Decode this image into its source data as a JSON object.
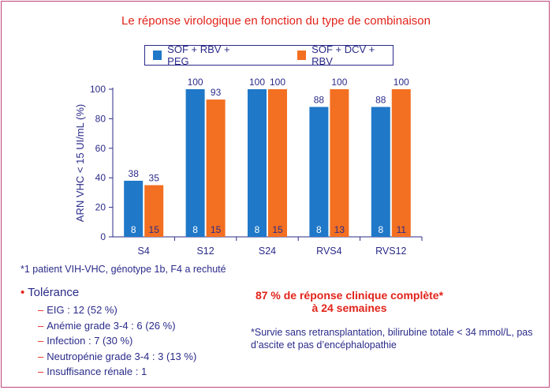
{
  "title": "Le réponse virologique en fonction du type de combinaison",
  "chart_data": {
    "type": "bar",
    "categories": [
      "S4",
      "S12",
      "S24",
      "RVS4",
      "RVS12"
    ],
    "series": [
      {
        "name": "SOF + RBV + PEG",
        "color": "#1f78c8",
        "values": [
          38,
          100,
          100,
          88,
          88
        ],
        "n": [
          8,
          8,
          8,
          8,
          8
        ]
      },
      {
        "name": "SOF + DCV + RBV",
        "color": "#f36f21",
        "values": [
          35,
          93,
          100,
          100,
          100
        ],
        "n": [
          15,
          15,
          15,
          13,
          11
        ]
      }
    ],
    "ylabel": "ARN VHC < 15 UI/mL (%)",
    "ylim": [
      0,
      100
    ],
    "yticks": [
      0,
      20,
      40,
      60,
      80,
      100
    ],
    "legend_position": "top",
    "grid": false
  },
  "note_patient": "*1 patient VIH-VHC, génotype 1b, F4 a rechuté",
  "tolerance": {
    "title": "Tolérance",
    "items": [
      "EIG : 12 (52 %)",
      "Anémie grade 3-4 : 6 (26 %)",
      "Infection : 7 (30 %)",
      "Neutropénie grade 3-4 : 3 (13 %)",
      "Insuffisance rénale : 1"
    ]
  },
  "highlight": {
    "line1": "87 % de réponse clinique complète*",
    "line2": "à 24 semaines"
  },
  "footnote": "*Survie sans retransplantation, bilirubine totale < 34 mmol/L, pas d’ascite et pas d’encéphalopathie"
}
